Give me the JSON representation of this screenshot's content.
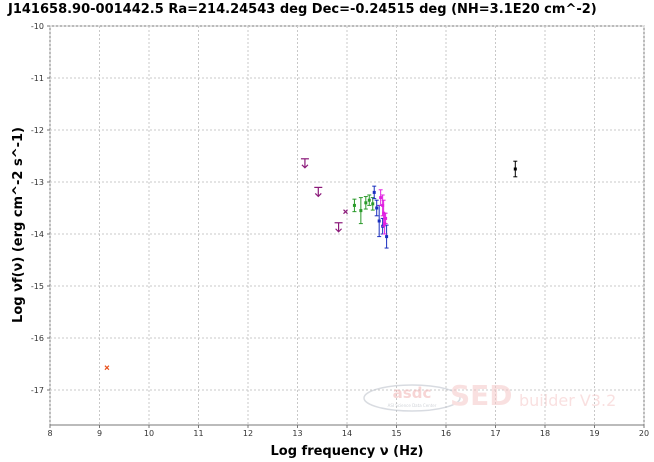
{
  "chart_data": {
    "type": "scatter",
    "title": "J141658.90-001442.5 Ra=214.24543 deg Dec=-0.24515 deg (NH=3.1E20 cm^-2)",
    "xlabel": "Log frequency ν (Hz)",
    "ylabel": "Log νf(ν) (erg cm^-2 s^-1)",
    "xlim": [
      8,
      20
    ],
    "ylim": [
      -17.7,
      -10
    ],
    "grid": true,
    "x_ticks": [
      "8",
      "9",
      "10",
      "11",
      "12",
      "13",
      "14",
      "15",
      "16",
      "17",
      "18",
      "19",
      "20"
    ],
    "y_ticks": [
      "-10",
      "-11",
      "-12",
      "-13",
      "-14",
      "-15",
      "-16",
      "-17"
    ],
    "series": [
      {
        "color": "#e8501c",
        "marker": "x",
        "points": [
          {
            "x": 9.15,
            "y": -16.57
          }
        ]
      },
      {
        "color": "#8b1a7a",
        "marker": "upper-limit",
        "points": [
          {
            "x": 13.15,
            "y": -12.65
          },
          {
            "x": 13.42,
            "y": -13.2
          },
          {
            "x": 13.83,
            "y": -13.88
          }
        ]
      },
      {
        "color": "#8b1a7a",
        "marker": "x",
        "points": [
          {
            "x": 13.97,
            "y": -13.57
          }
        ]
      },
      {
        "color": "#2a9a2a",
        "marker": "errorbar",
        "points": [
          {
            "x": 14.15,
            "y": -13.45,
            "err": 0.12
          },
          {
            "x": 14.28,
            "y": -13.55,
            "err": 0.25
          },
          {
            "x": 14.38,
            "y": -13.4,
            "err": 0.12
          },
          {
            "x": 14.45,
            "y": -13.35,
            "err": 0.1
          },
          {
            "x": 14.52,
            "y": -13.42,
            "err": 0.12
          }
        ]
      },
      {
        "color": "#1a2fbf",
        "marker": "errorbar",
        "points": [
          {
            "x": 14.55,
            "y": -13.2,
            "err": 0.12
          },
          {
            "x": 14.6,
            "y": -13.5,
            "err": 0.15
          },
          {
            "x": 14.65,
            "y": -13.75,
            "err": 0.3
          },
          {
            "x": 14.72,
            "y": -13.85,
            "err": 0.15
          },
          {
            "x": 14.8,
            "y": -14.05,
            "err": 0.22
          }
        ]
      },
      {
        "color": "#e020e0",
        "marker": "errorbar",
        "points": [
          {
            "x": 14.68,
            "y": -13.3,
            "err": 0.15
          },
          {
            "x": 14.72,
            "y": -13.45,
            "err": 0.2
          },
          {
            "x": 14.74,
            "y": -13.6,
            "err": 0.25
          },
          {
            "x": 14.76,
            "y": -13.8,
            "err": 0.2
          },
          {
            "x": 14.78,
            "y": -13.7,
            "err": 0.1
          }
        ]
      },
      {
        "color": "#000000",
        "marker": "errorbar",
        "points": [
          {
            "x": 17.4,
            "y": -12.75,
            "err": 0.15
          }
        ]
      }
    ]
  },
  "watermark": {
    "logo": "asdc",
    "logo_subtitle": "ASI Science Data Center",
    "text": "SED",
    "suffix": "builder V3.2"
  }
}
